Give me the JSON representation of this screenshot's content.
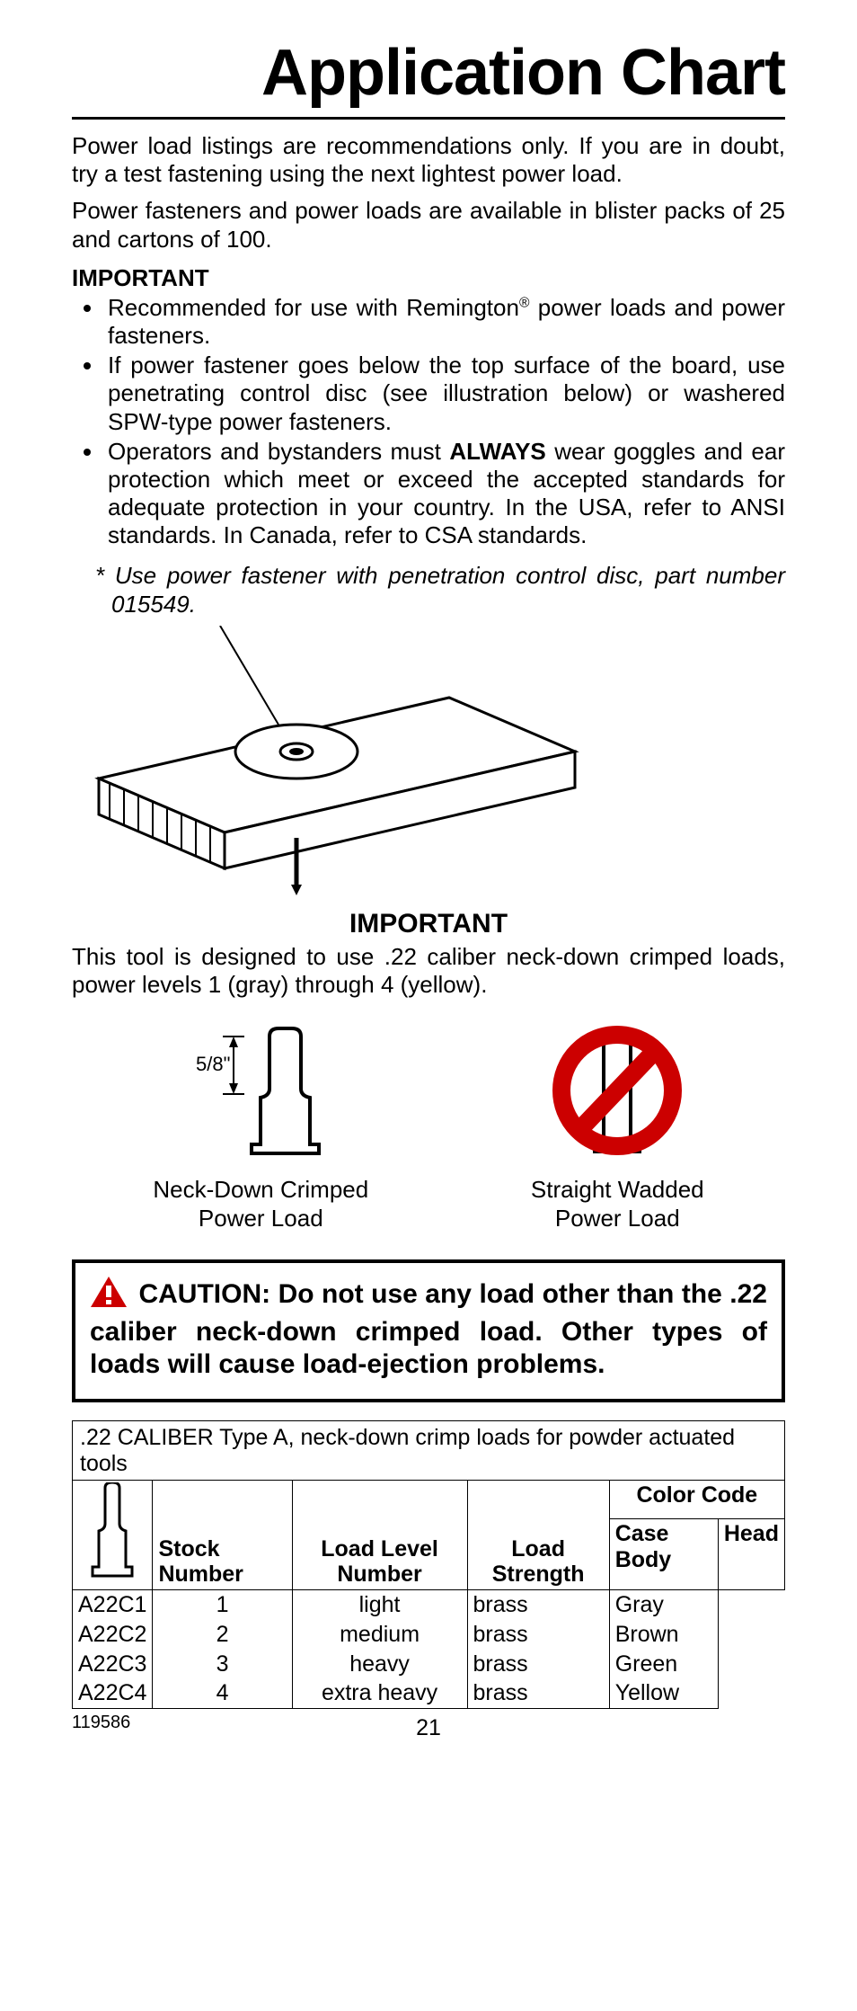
{
  "title": "Application Chart",
  "intro1": "Power load listings are recommendations only. If you are in doubt, try a test fastening using the next lightest power load.",
  "intro2": "Power fasteners and power loads are available in blister packs of 25 and cartons of 100.",
  "importantHeader": "IMPORTANT",
  "bullet1a": "Recommended for use with Remington",
  "bullet1b": " power loads and power fasteners.",
  "registered": "®",
  "bullet2": "If power fastener goes below the top surface of the board, use penetrating control disc (see illustration below) or washered SPW-type power fasteners.",
  "bullet3a": "Operators and bystanders must ",
  "bullet3b": "ALWAYS",
  "bullet3c": " wear goggles and ear protection which meet or exceed the accepted standards for adequate protection in your country. In the USA, refer to ANSI standards. In Canada, refer to CSA standards.",
  "noteItalic": "* Use power fastener with penetration control disc, part number 015549.",
  "centerImportant": "IMPORTANT",
  "toolDesc": "This tool is designed to use .22 caliber neck-down crimped loads, power levels 1 (gray) through 4 (yellow).",
  "cart1Label": "Neck-Down Crimped\nPower Load",
  "cart1Dim": "5/8\"",
  "cart2Label": "Straight Wadded\nPower Load",
  "cautionText": "CAUTION: Do not use any load other than the .22 caliber neck-down crimped load. Other types of loads will cause load-ejection problems.",
  "tableTitle": ".22 CALIBER Type A, neck-down crimp loads for powder actuated tools",
  "headers": {
    "stock": "Stock Number",
    "level": "Load Level Number",
    "strength": "Load Strength",
    "colorCode": "Color Code",
    "caseBody": "Case Body",
    "head": "Head"
  },
  "rows": [
    {
      "stock": "A22C1",
      "level": "1",
      "strength": "light",
      "body": "brass",
      "head": "Gray"
    },
    {
      "stock": "A22C2",
      "level": "2",
      "strength": "medium",
      "body": "brass",
      "head": "Brown"
    },
    {
      "stock": "A22C3",
      "level": "3",
      "strength": "heavy",
      "body": "brass",
      "head": "Green"
    },
    {
      "stock": "A22C4",
      "level": "4",
      "strength": "extra heavy",
      "body": "brass",
      "head": "Yellow"
    }
  ],
  "docNumber": "119586",
  "pageNumber": "21",
  "colors": {
    "cautionRed": "#cc0000",
    "black": "#000000",
    "white": "#ffffff"
  }
}
